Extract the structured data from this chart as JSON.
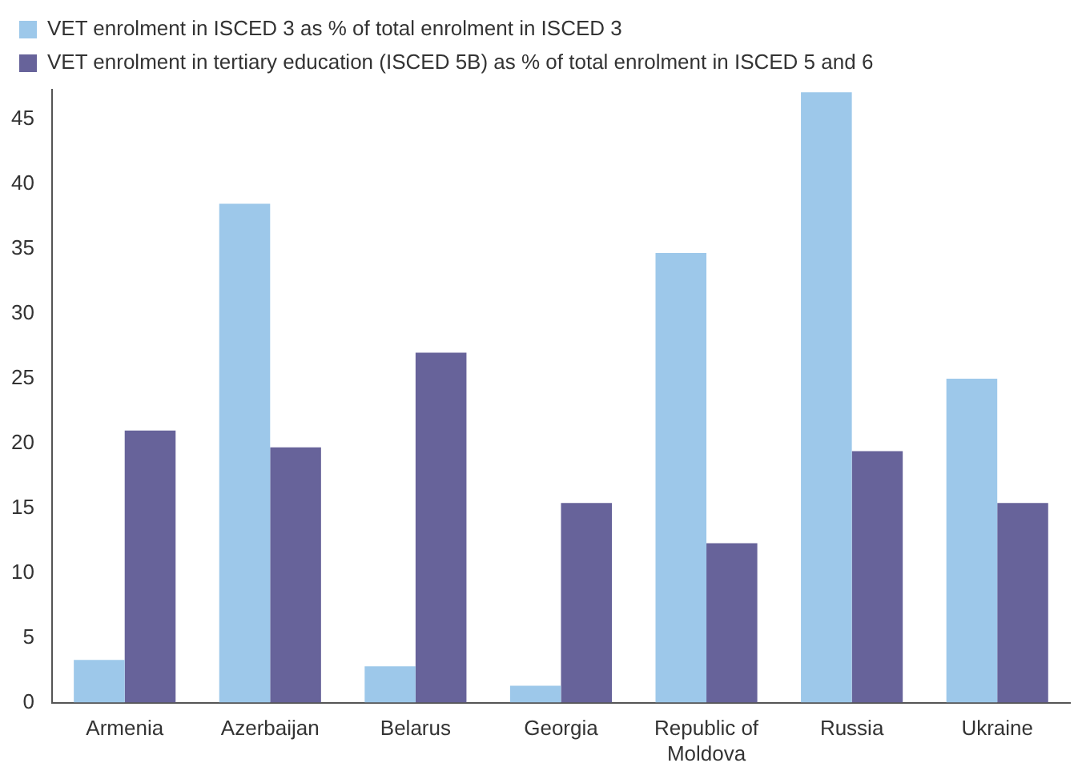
{
  "chart_data": {
    "type": "bar",
    "categories": [
      "Armenia",
      "Azerbaijan",
      "Belarus",
      "Georgia",
      "Republic of Moldova",
      "Russia",
      "Ukraine"
    ],
    "series": [
      {
        "name": "VET enrolment in ISCED 3 as % of total enrolment in ISCED 3",
        "color": "#9dc8ea",
        "values": [
          3.3,
          38.5,
          2.8,
          1.3,
          34.7,
          47.1,
          25.0
        ]
      },
      {
        "name": "VET enrolment in tertiary education (ISCED 5B) as % of total enrolment in ISCED 5 and 6",
        "color": "#67639a",
        "values": [
          21.0,
          19.7,
          27.0,
          15.4,
          12.3,
          19.4,
          15.4
        ]
      }
    ],
    "ylim": [
      0,
      47.3
    ],
    "yticks": [
      0,
      5,
      10,
      15,
      20,
      25,
      30,
      35,
      40,
      45
    ],
    "grid": false,
    "legend": "top left"
  }
}
